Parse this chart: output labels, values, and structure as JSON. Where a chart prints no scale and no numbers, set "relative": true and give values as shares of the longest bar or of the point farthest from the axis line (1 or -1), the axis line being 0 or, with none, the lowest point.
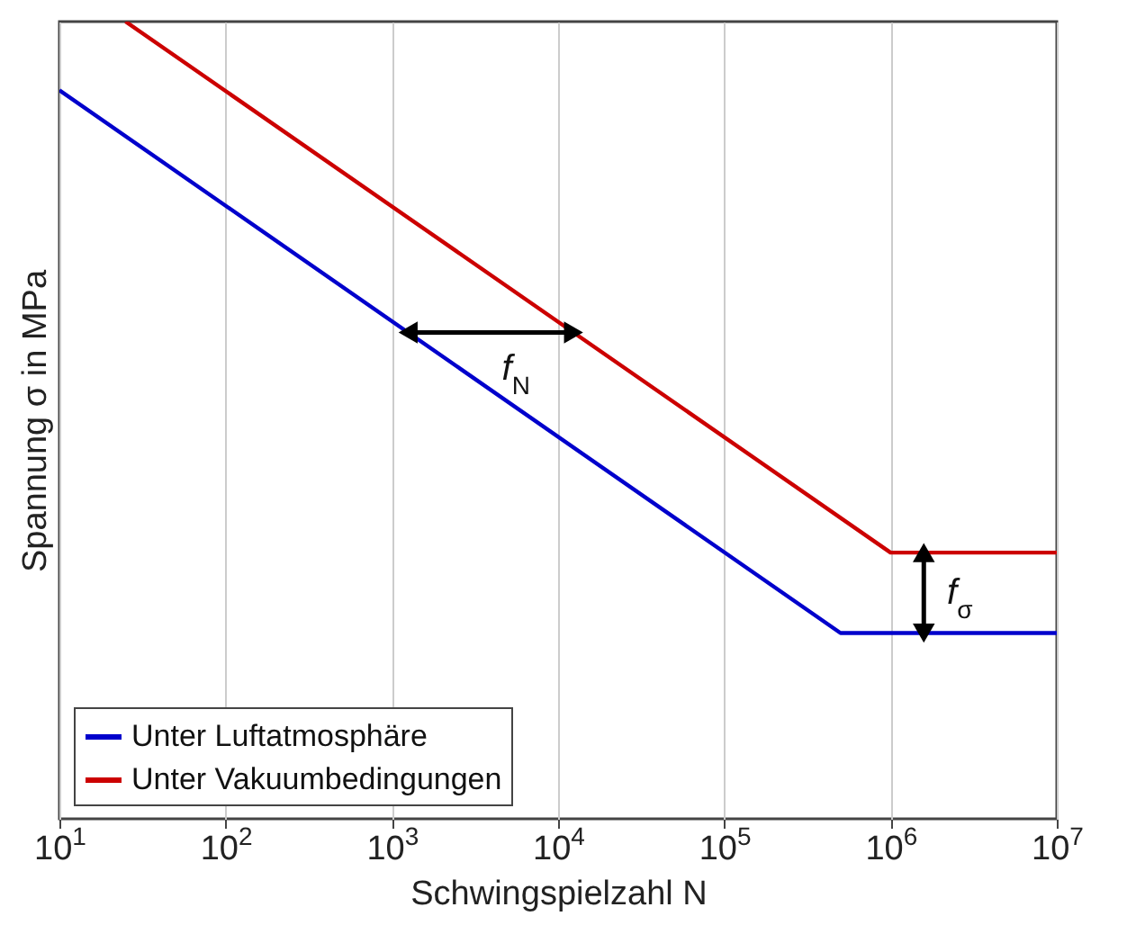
{
  "chart_data": {
    "type": "line",
    "xlabel": "Schwingspielzahl N",
    "ylabel": "Spannung σ in MPa",
    "relative": true,
    "log": "x",
    "grid": "x",
    "legend": "bottom left",
    "marker": "none",
    "line_style": "solid",
    "xlim": [
      10,
      10000000
    ],
    "xticks": [
      {
        "value": 10,
        "label": "10$^{1}$"
      },
      {
        "value": 100,
        "label": "10$^{2}$"
      },
      {
        "value": 1000,
        "label": "10$^{3}$"
      },
      {
        "value": 10000,
        "label": "10$^{4}$"
      },
      {
        "value": 100000,
        "label": "10$^{5}$"
      },
      {
        "value": 1000000,
        "label": "10$^{6}$"
      },
      {
        "value": 10000000,
        "label": "10$^{7}$"
      }
    ],
    "series": [
      {
        "name": "Unter Luftatmosphäre",
        "color": "#0000cc",
        "x": [
          10,
          500000,
          10000000
        ],
        "values": [
          0.914,
          0.233,
          0.233
        ]
      },
      {
        "name": "Unter Vakuumbedingungen",
        "color": "#cc0000",
        "x": [
          25,
          1000000,
          10000000
        ],
        "values": [
          1,
          0.334,
          0.334
        ]
      }
    ],
    "annotations": [
      "f$_{N}$",
      "f$_{σ}$"
    ]
  }
}
